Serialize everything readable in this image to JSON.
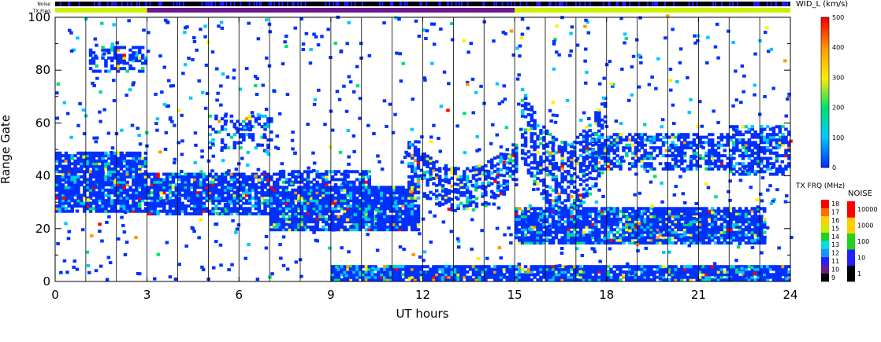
{
  "top_bars": {
    "noise_label": "Noise",
    "freq_label": "TX Freq"
  },
  "chart_data": {
    "type": "heatmap",
    "title": "",
    "xlabel": "UT hours",
    "ylabel": "Range Gate",
    "xlim": [
      0,
      24
    ],
    "ylim": [
      0,
      100
    ],
    "x_ticks": [
      "0",
      "3",
      "6",
      "9",
      "12",
      "15",
      "18",
      "21",
      "24"
    ],
    "y_ticks": [
      "0",
      "20",
      "40",
      "60",
      "80",
      "100"
    ],
    "grid_x_hours": [
      1,
      2,
      3,
      4,
      5,
      6,
      7,
      8,
      9,
      10,
      11,
      12,
      13,
      14,
      15,
      16,
      17,
      18,
      19,
      20,
      21,
      22,
      23
    ],
    "param": {
      "label": "WID_L (km/s)",
      "scale_ticks": [
        "0",
        "100",
        "200",
        "300",
        "400",
        "500"
      ],
      "range": [
        0,
        500
      ],
      "colors": [
        "#0030ff",
        "#00c8ff",
        "#00e070",
        "#ffee00",
        "#ff9900",
        "#ff0000"
      ]
    },
    "tx_freq": {
      "label": "TX FRQ (MHz)",
      "ticks": [
        "9",
        "10",
        "11",
        "12",
        "13",
        "14",
        "15",
        "16",
        "17",
        "18"
      ],
      "colors": [
        "#000000",
        "#6b1c8c",
        "#2020ff",
        "#2090ff",
        "#00e0e0",
        "#22d022",
        "#ccee00",
        "#ffd000",
        "#ff7000",
        "#ff0000"
      ],
      "segments": [
        {
          "start": 0,
          "end": 3,
          "mhz": 15
        },
        {
          "start": 3,
          "end": 15,
          "mhz": 10
        },
        {
          "start": 15,
          "end": 24,
          "mhz": 15
        }
      ]
    },
    "noise": {
      "label": "NOISE",
      "ticks": [
        "1",
        "10",
        "100",
        "1000",
        "10000"
      ],
      "colors": [
        "#000000",
        "#2020ff",
        "#22d022",
        "#ffd000",
        "#ff0000"
      ]
    },
    "echo_regions": [
      {
        "t0": 0.0,
        "t1": 3.0,
        "g0": 26,
        "g1": 48,
        "shift": 0.0,
        "fill": 0.85
      },
      {
        "t0": 1.1,
        "t1": 3.0,
        "g0": 79,
        "g1": 88,
        "shift": 0.0,
        "fill": 0.55
      },
      {
        "t0": 3.0,
        "t1": 7.2,
        "g0": 25,
        "g1": 40,
        "shift": 0.0,
        "fill": 0.8
      },
      {
        "t0": 7.0,
        "t1": 11.8,
        "g0": 19,
        "g1": 35,
        "shift": 0.0,
        "fill": 0.9
      },
      {
        "t0": 7.3,
        "t1": 10.2,
        "g0": 36,
        "g1": 41,
        "shift": 0.0,
        "fill": 0.6
      },
      {
        "t0": 11.5,
        "t1": 15.0,
        "g0": 36,
        "g1": 52,
        "shift": -10.0,
        "fill": 0.55
      },
      {
        "t0": 15.0,
        "t1": 23.2,
        "g0": 14,
        "g1": 27,
        "shift": 0.0,
        "fill": 0.85
      },
      {
        "t0": 15.2,
        "t1": 18.0,
        "g0": 45,
        "g1": 72,
        "shift": -20.0,
        "fill": 0.5
      },
      {
        "t0": 17.5,
        "t1": 22.0,
        "g0": 42,
        "g1": 55,
        "shift": 0.0,
        "fill": 0.55
      },
      {
        "t0": 22.0,
        "t1": 24.0,
        "g0": 40,
        "g1": 58,
        "shift": 0.0,
        "fill": 0.6
      },
      {
        "t0": 9.0,
        "t1": 24.0,
        "g0": 0,
        "g1": 5,
        "shift": 0.0,
        "fill": 0.9
      },
      {
        "t0": 5.0,
        "t1": 7.0,
        "g0": 50,
        "g1": 62,
        "shift": 0.0,
        "fill": 0.35
      }
    ]
  }
}
